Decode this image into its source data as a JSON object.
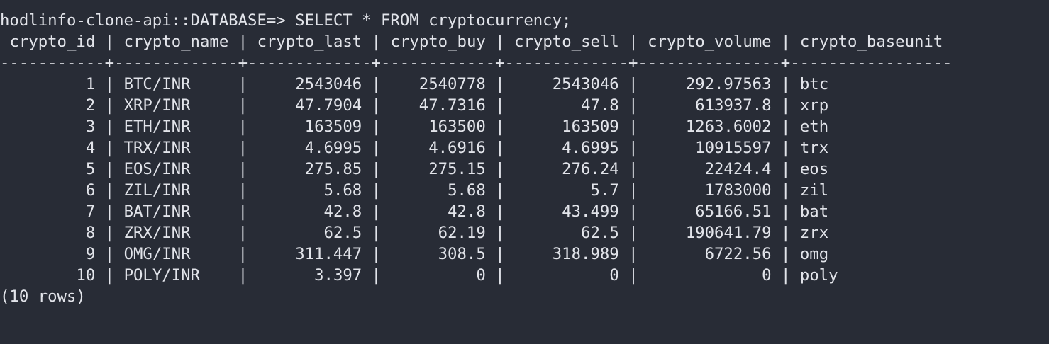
{
  "terminal": {
    "prompt": "hodlinfo-clone-api::DATABASE=>",
    "command": "SELECT * FROM cryptocurrency;",
    "columns": [
      "crypto_id",
      "crypto_name",
      "crypto_last",
      "crypto_buy",
      "crypto_sell",
      "crypto_volume",
      "crypto_baseunit"
    ],
    "rows": [
      [
        "1",
        "BTC/INR",
        "2543046",
        "2540778",
        "2543046",
        "292.97563",
        "btc"
      ],
      [
        "2",
        "XRP/INR",
        "47.7904",
        "47.7316",
        "47.8",
        "613937.8",
        "xrp"
      ],
      [
        "3",
        "ETH/INR",
        "163509",
        "163500",
        "163509",
        "1263.6002",
        "eth"
      ],
      [
        "4",
        "TRX/INR",
        "4.6995",
        "4.6916",
        "4.6995",
        "10915597",
        "trx"
      ],
      [
        "5",
        "EOS/INR",
        "275.85",
        "275.15",
        "276.24",
        "22424.4",
        "eos"
      ],
      [
        "6",
        "ZIL/INR",
        "5.68",
        "5.68",
        "5.7",
        "1783000",
        "zil"
      ],
      [
        "7",
        "BAT/INR",
        "42.8",
        "42.8",
        "43.499",
        "65166.51",
        "bat"
      ],
      [
        "8",
        "ZRX/INR",
        "62.5",
        "62.19",
        "62.5",
        "190641.79",
        "zrx"
      ],
      [
        "9",
        "OMG/INR",
        "311.447",
        "308.5",
        "318.989",
        "6722.56",
        "omg"
      ],
      [
        "10",
        "POLY/INR",
        "3.397",
        "0",
        "0",
        "0",
        "poly"
      ]
    ],
    "row_count": "(10 rows)"
  },
  "colors": {
    "background": "#282c36",
    "text": "#e2e4ea"
  }
}
